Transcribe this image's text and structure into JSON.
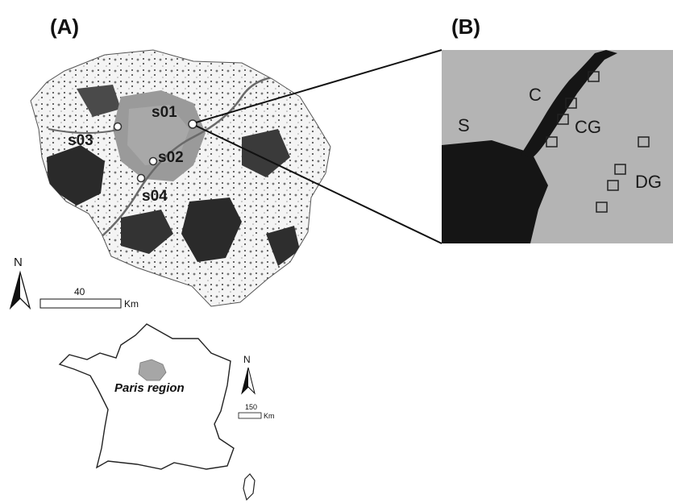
{
  "panels": {
    "a_label": "(A)",
    "b_label": "(B)"
  },
  "sites": [
    {
      "label": "s01"
    },
    {
      "label": "s02"
    },
    {
      "label": "s03"
    },
    {
      "label": "s04"
    }
  ],
  "inset_zones": {
    "s": "S",
    "c": "C",
    "cg": "CG",
    "dg": "DG"
  },
  "scale_bar_a": {
    "value": "40",
    "unit": "Km",
    "north": "N"
  },
  "france_map": {
    "region_label": "Paris region",
    "scale_value": "150",
    "unit": "Km",
    "north": "N"
  },
  "colors": {
    "urban_dense": "#1c1c1c",
    "urban_grey": "#9a9a9a",
    "inset_bg": "#b4b4b4",
    "paris_region_fill": "#a6a6a6"
  }
}
